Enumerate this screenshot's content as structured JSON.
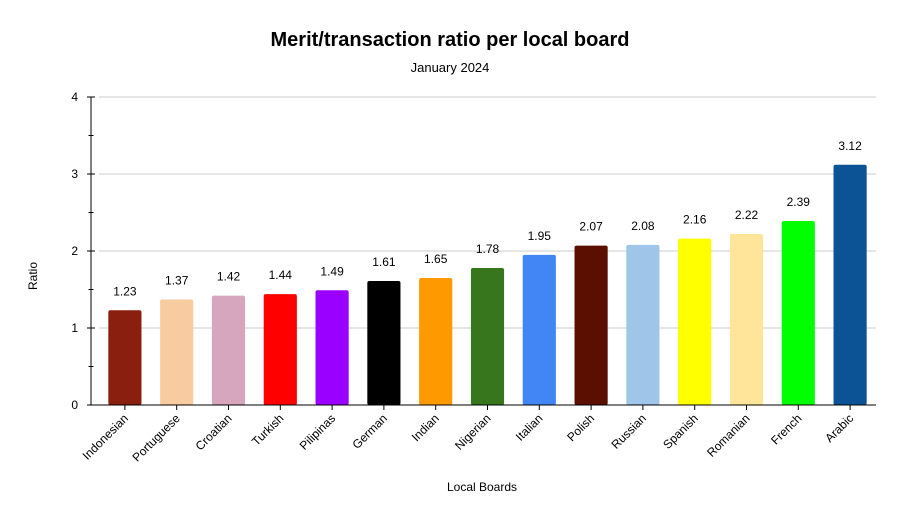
{
  "chart_data": {
    "type": "bar",
    "title": "Merit/transaction ratio per local board",
    "subtitle": "January 2024",
    "xlabel": "Local Boards",
    "ylabel": "Ratio",
    "ylim": [
      0,
      4
    ],
    "yticks": [
      "0",
      "1",
      "2",
      "3",
      "4"
    ],
    "grid": true,
    "categories": [
      "Indonesian",
      "Portuguese",
      "Croatian",
      "Turkish",
      "Pilipinas",
      "German",
      "Indian",
      "Nigerian",
      "Italian",
      "Polish",
      "Russian",
      "Spanish",
      "Romanian",
      "French",
      "Arabic"
    ],
    "values": [
      1.23,
      1.37,
      1.42,
      1.44,
      1.49,
      1.61,
      1.65,
      1.78,
      1.95,
      2.07,
      2.08,
      2.16,
      2.22,
      2.39,
      3.12
    ],
    "value_labels": [
      "1.23",
      "1.37",
      "1.42",
      "1.44",
      "1.49",
      "1.61",
      "1.65",
      "1.78",
      "1.95",
      "2.07",
      "2.08",
      "2.16",
      "2.22",
      "2.39",
      "3.12"
    ],
    "colors": [
      "#8a1e0f",
      "#f8cba0",
      "#d5a6bd",
      "#ff0000",
      "#9900ff",
      "#000000",
      "#ff9900",
      "#38761d",
      "#4285f4",
      "#5b0f00",
      "#9fc5e8",
      "#ffff00",
      "#ffe599",
      "#00ff00",
      "#0b5394"
    ]
  }
}
